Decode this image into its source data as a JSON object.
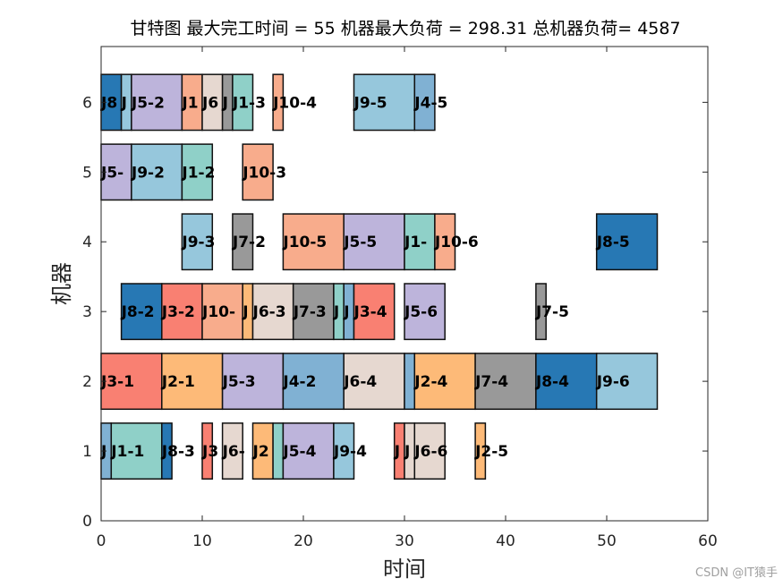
{
  "page_title": "甘特图 最大完工时间 = 55 机器最大负荷 = 298.31 总机器负荷= 4587",
  "watermark": "CSDN @IT猿手",
  "colors": {
    "J1": "#8FD0C8",
    "J2": "#FDBA78",
    "J3": "#F98072",
    "J4": "#80B1D3",
    "J5": "#BDB4DB",
    "J6": "#E6D8D0",
    "J7": "#999999",
    "J8": "#2778B4",
    "J9": "#96C7DC",
    "J10": "#F8AC8C"
  },
  "chart_data": {
    "type": "gantt",
    "title": "甘特图 最大完工时间 = 55 机器最大负荷 = 298.31 总机器负荷= 4587",
    "xlabel": "时间",
    "ylabel": "机器",
    "xlim": [
      0,
      60
    ],
    "ylim": [
      0,
      6.8
    ],
    "xticks": [
      "0",
      "10",
      "20",
      "30",
      "40",
      "50",
      "60"
    ],
    "yticks": [
      "0",
      "1",
      "2",
      "3",
      "4",
      "5",
      "6"
    ],
    "grid": false,
    "tasks": [
      {
        "machine": 1,
        "job": "J4",
        "label": "J",
        "start": 0,
        "end": 1
      },
      {
        "machine": 1,
        "job": "J1",
        "label": "J1-1",
        "start": 1,
        "end": 6
      },
      {
        "machine": 1,
        "job": "J8",
        "label": "J8-3",
        "start": 6,
        "end": 7
      },
      {
        "machine": 1,
        "job": "J3",
        "label": "J3",
        "start": 10,
        "end": 11
      },
      {
        "machine": 1,
        "job": "J6",
        "label": "J6-",
        "start": 12,
        "end": 14
      },
      {
        "machine": 1,
        "job": "J2",
        "label": "J2",
        "start": 15,
        "end": 17
      },
      {
        "machine": 1,
        "job": "J1",
        "label": "",
        "start": 17,
        "end": 18
      },
      {
        "machine": 1,
        "job": "J5",
        "label": "J5-4",
        "start": 18,
        "end": 23
      },
      {
        "machine": 1,
        "job": "J9",
        "label": "J9-4",
        "start": 23,
        "end": 25
      },
      {
        "machine": 1,
        "job": "J3",
        "label": "J",
        "start": 29,
        "end": 30
      },
      {
        "machine": 1,
        "job": "J6",
        "label": "J",
        "start": 30,
        "end": 31
      },
      {
        "machine": 1,
        "job": "J6",
        "label": "J6-6",
        "start": 31,
        "end": 34
      },
      {
        "machine": 1,
        "job": "J2",
        "label": "J2-5",
        "start": 37,
        "end": 38
      },
      {
        "machine": 2,
        "job": "J3",
        "label": "J3-1",
        "start": 0,
        "end": 6
      },
      {
        "machine": 2,
        "job": "J2",
        "label": "J2-1",
        "start": 6,
        "end": 12
      },
      {
        "machine": 2,
        "job": "J5",
        "label": "J5-3",
        "start": 12,
        "end": 18
      },
      {
        "machine": 2,
        "job": "J4",
        "label": "J4-2",
        "start": 18,
        "end": 24
      },
      {
        "machine": 2,
        "job": "J6",
        "label": "J6-4",
        "start": 24,
        "end": 30
      },
      {
        "machine": 2,
        "job": "J4",
        "label": "",
        "start": 30,
        "end": 31
      },
      {
        "machine": 2,
        "job": "J2",
        "label": "J2-4",
        "start": 31,
        "end": 37
      },
      {
        "machine": 2,
        "job": "J7",
        "label": "J7-4",
        "start": 37,
        "end": 43
      },
      {
        "machine": 2,
        "job": "J8",
        "label": "J8-4",
        "start": 43,
        "end": 49
      },
      {
        "machine": 2,
        "job": "J9",
        "label": "J9-6",
        "start": 49,
        "end": 55
      },
      {
        "machine": 3,
        "job": "J8",
        "label": "J8-2",
        "start": 2,
        "end": 6
      },
      {
        "machine": 3,
        "job": "J3",
        "label": "J3-2",
        "start": 6,
        "end": 10
      },
      {
        "machine": 3,
        "job": "J10",
        "label": "J10-",
        "start": 10,
        "end": 14
      },
      {
        "machine": 3,
        "job": "J2",
        "label": "J",
        "start": 14,
        "end": 15
      },
      {
        "machine": 3,
        "job": "J6",
        "label": "J6-3",
        "start": 15,
        "end": 19
      },
      {
        "machine": 3,
        "job": "J7",
        "label": "J7-3",
        "start": 19,
        "end": 23
      },
      {
        "machine": 3,
        "job": "J1",
        "label": "J",
        "start": 23,
        "end": 24
      },
      {
        "machine": 3,
        "job": "J4",
        "label": "J",
        "start": 24,
        "end": 25
      },
      {
        "machine": 3,
        "job": "J3",
        "label": "J3-4",
        "start": 25,
        "end": 29
      },
      {
        "machine": 3,
        "job": "J5",
        "label": "J5-6",
        "start": 30,
        "end": 34
      },
      {
        "machine": 3,
        "job": "J7",
        "label": "J7-5",
        "start": 43,
        "end": 44
      },
      {
        "machine": 4,
        "job": "J9",
        "label": "J9-3",
        "start": 8,
        "end": 11
      },
      {
        "machine": 4,
        "job": "J7",
        "label": "J7-2",
        "start": 13,
        "end": 15
      },
      {
        "machine": 4,
        "job": "J10",
        "label": "J10-5",
        "start": 18,
        "end": 24
      },
      {
        "machine": 4,
        "job": "J5",
        "label": "J5-5",
        "start": 24,
        "end": 30
      },
      {
        "machine": 4,
        "job": "J1",
        "label": "J1-",
        "start": 30,
        "end": 33
      },
      {
        "machine": 4,
        "job": "J10",
        "label": "J10-6",
        "start": 33,
        "end": 35
      },
      {
        "machine": 4,
        "job": "J8",
        "label": "J8-5",
        "start": 49,
        "end": 55
      },
      {
        "machine": 5,
        "job": "J5",
        "label": "J5-",
        "start": 0,
        "end": 3
      },
      {
        "machine": 5,
        "job": "J9",
        "label": "J9-2",
        "start": 3,
        "end": 8
      },
      {
        "machine": 5,
        "job": "J1",
        "label": "J1-2",
        "start": 8,
        "end": 11
      },
      {
        "machine": 5,
        "job": "J10",
        "label": "J10-3",
        "start": 14,
        "end": 17
      },
      {
        "machine": 6,
        "job": "J8",
        "label": "J8",
        "start": 0,
        "end": 2
      },
      {
        "machine": 6,
        "job": "J9",
        "label": "J",
        "start": 2,
        "end": 3
      },
      {
        "machine": 6,
        "job": "J5",
        "label": "J5-2",
        "start": 3,
        "end": 8
      },
      {
        "machine": 6,
        "job": "J10",
        "label": "J1",
        "start": 8,
        "end": 10
      },
      {
        "machine": 6,
        "job": "J6",
        "label": "J6",
        "start": 10,
        "end": 12
      },
      {
        "machine": 6,
        "job": "J7",
        "label": "J",
        "start": 12,
        "end": 13
      },
      {
        "machine": 6,
        "job": "J1",
        "label": "J1-3",
        "start": 13,
        "end": 15
      },
      {
        "machine": 6,
        "job": "J10",
        "label": "J10-4",
        "start": 17,
        "end": 18
      },
      {
        "machine": 6,
        "job": "J9",
        "label": "J9-5",
        "start": 25,
        "end": 31
      },
      {
        "machine": 6,
        "job": "J4",
        "label": "J4-5",
        "start": 31,
        "end": 33
      }
    ]
  }
}
